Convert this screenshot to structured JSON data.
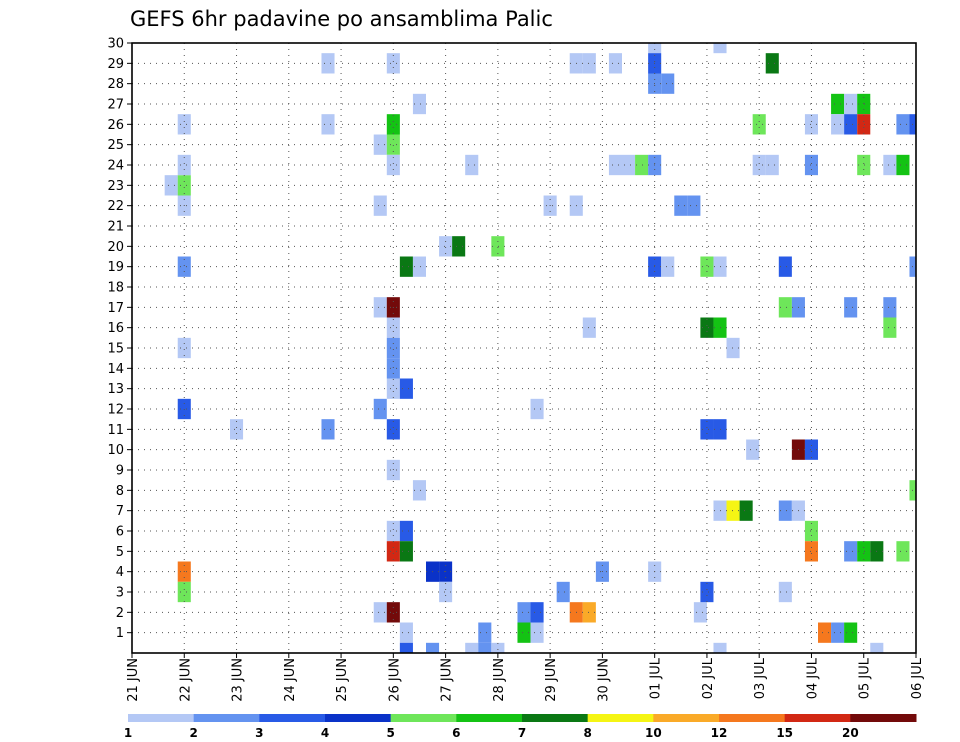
{
  "chart_data": {
    "type": "heatmap",
    "title": "GEFS 6hr padavine po ansamblima Palic",
    "xlabel": "",
    "ylabel": "",
    "x_ticks": [
      "21 JUN",
      "22 JUN",
      "23 JUN",
      "24 JUN",
      "25 JUN",
      "26 JUN",
      "27 JUN",
      "28 JUN",
      "29 JUN",
      "30 JUN",
      "01 JUL",
      "02 JUL",
      "03 JUL",
      "04 JUL",
      "05 JUL",
      "06 JUL"
    ],
    "y_ticks": [
      "1",
      "2",
      "3",
      "4",
      "5",
      "6",
      "7",
      "8",
      "9",
      "10",
      "11",
      "12",
      "13",
      "14",
      "15",
      "16",
      "17",
      "18",
      "19",
      "20",
      "21",
      "22",
      "23",
      "24",
      "25",
      "26",
      "27",
      "28",
      "29",
      "30"
    ],
    "xlim_days": [
      0,
      15
    ],
    "ylim": [
      0,
      30
    ],
    "grid": true,
    "colorbar": {
      "ticks": [
        "1",
        "2",
        "3",
        "4",
        "5",
        "6",
        "7",
        "8",
        "10",
        "12",
        "15",
        "20"
      ],
      "colors": [
        "#b4c8f5",
        "#6493f0",
        "#285ae6",
        "#0a32c8",
        "#6ee65a",
        "#14c314",
        "#0a7814",
        "#f5f514",
        "#faaa28",
        "#f5781e",
        "#d22814",
        "#730a0a"
      ]
    },
    "cells": [
      [
        0.75,
        23,
        0
      ],
      [
        1.0,
        23,
        4
      ],
      [
        1.0,
        22,
        0
      ],
      [
        1.0,
        24,
        0
      ],
      [
        1.0,
        26,
        0
      ],
      [
        1.0,
        19,
        1
      ],
      [
        1.0,
        15,
        0
      ],
      [
        1.0,
        12,
        2
      ],
      [
        1.0,
        4,
        9
      ],
      [
        1.0,
        3,
        4
      ],
      [
        2.0,
        11,
        0
      ],
      [
        3.75,
        29,
        0
      ],
      [
        3.75,
        26,
        0
      ],
      [
        3.75,
        11,
        1
      ],
      [
        4.75,
        25,
        0
      ],
      [
        4.75,
        22,
        0
      ],
      [
        4.75,
        17,
        0
      ],
      [
        4.75,
        12,
        1
      ],
      [
        4.75,
        2,
        0
      ],
      [
        5.0,
        29,
        0
      ],
      [
        5.0,
        26,
        5
      ],
      [
        5.0,
        25,
        4
      ],
      [
        5.0,
        24,
        0
      ],
      [
        5.0,
        17,
        11
      ],
      [
        5.0,
        16,
        0
      ],
      [
        5.0,
        15,
        1
      ],
      [
        5.0,
        14,
        1
      ],
      [
        5.0,
        13,
        0
      ],
      [
        5.0,
        11,
        2
      ],
      [
        5.0,
        9,
        0
      ],
      [
        5.0,
        6,
        0
      ],
      [
        5.0,
        5,
        10
      ],
      [
        5.0,
        2,
        11
      ],
      [
        5.25,
        19,
        6
      ],
      [
        5.25,
        13,
        2
      ],
      [
        5.25,
        6,
        2
      ],
      [
        5.25,
        5,
        6
      ],
      [
        5.25,
        1,
        0
      ],
      [
        5.25,
        0,
        2
      ],
      [
        5.5,
        27,
        0
      ],
      [
        5.5,
        19,
        0
      ],
      [
        5.5,
        8,
        0
      ],
      [
        5.75,
        4,
        3
      ],
      [
        5.75,
        0,
        1
      ],
      [
        6.0,
        20,
        0
      ],
      [
        6.0,
        4,
        3
      ],
      [
        6.0,
        3,
        0
      ],
      [
        6.25,
        20,
        6
      ],
      [
        6.5,
        24,
        0
      ],
      [
        6.5,
        0,
        0
      ],
      [
        6.75,
        1,
        1
      ],
      [
        6.75,
        0,
        1
      ],
      [
        7.0,
        20,
        4
      ],
      [
        7.0,
        0,
        0
      ],
      [
        7.5,
        2,
        1
      ],
      [
        7.5,
        1,
        5
      ],
      [
        7.75,
        2,
        2
      ],
      [
        7.75,
        1,
        0
      ],
      [
        7.75,
        12,
        0
      ],
      [
        8.0,
        22,
        0
      ],
      [
        8.25,
        3,
        1
      ],
      [
        8.5,
        29,
        0
      ],
      [
        8.5,
        22,
        0
      ],
      [
        8.5,
        2,
        9
      ],
      [
        8.75,
        29,
        0
      ],
      [
        8.75,
        16,
        0
      ],
      [
        8.75,
        2,
        8
      ],
      [
        9.0,
        4,
        1
      ],
      [
        9.25,
        29,
        0
      ],
      [
        9.25,
        24,
        0
      ],
      [
        9.5,
        24,
        0
      ],
      [
        9.75,
        24,
        4
      ],
      [
        10.0,
        30,
        0
      ],
      [
        10.0,
        29,
        2
      ],
      [
        10.0,
        28,
        1
      ],
      [
        10.0,
        24,
        1
      ],
      [
        10.0,
        19,
        2
      ],
      [
        10.0,
        4,
        0
      ],
      [
        10.25,
        28,
        1
      ],
      [
        10.25,
        19,
        0
      ],
      [
        10.5,
        22,
        1
      ],
      [
        10.75,
        22,
        1
      ],
      [
        10.875,
        2,
        0
      ],
      [
        11.0,
        19,
        4
      ],
      [
        11.0,
        16,
        6
      ],
      [
        11.0,
        11,
        2
      ],
      [
        11.0,
        3,
        2
      ],
      [
        11.25,
        30,
        0
      ],
      [
        11.25,
        19,
        0
      ],
      [
        11.25,
        16,
        5
      ],
      [
        11.25,
        11,
        2
      ],
      [
        11.25,
        7,
        0
      ],
      [
        11.25,
        0,
        0
      ],
      [
        11.5,
        15,
        0
      ],
      [
        11.5,
        7,
        7
      ],
      [
        11.75,
        7,
        6
      ],
      [
        11.875,
        10,
        0
      ],
      [
        12.0,
        26,
        4
      ],
      [
        12.0,
        24,
        0
      ],
      [
        12.25,
        24,
        0
      ],
      [
        12.25,
        29,
        6
      ],
      [
        12.5,
        19,
        2
      ],
      [
        12.5,
        17,
        4
      ],
      [
        12.5,
        7,
        1
      ],
      [
        12.5,
        3,
        0
      ],
      [
        12.75,
        17,
        1
      ],
      [
        12.75,
        10,
        11
      ],
      [
        12.75,
        7,
        0
      ],
      [
        13.0,
        26,
        0
      ],
      [
        13.0,
        24,
        1
      ],
      [
        13.0,
        10,
        2
      ],
      [
        13.0,
        6,
        4
      ],
      [
        13.0,
        5,
        9
      ],
      [
        13.25,
        1,
        9
      ],
      [
        13.5,
        27,
        5
      ],
      [
        13.5,
        26,
        0
      ],
      [
        13.5,
        1,
        1
      ],
      [
        13.75,
        27,
        0
      ],
      [
        13.75,
        26,
        2
      ],
      [
        13.75,
        17,
        1
      ],
      [
        13.75,
        5,
        1
      ],
      [
        13.75,
        1,
        5
      ],
      [
        14.0,
        27,
        5
      ],
      [
        14.0,
        26,
        10
      ],
      [
        14.0,
        24,
        4
      ],
      [
        14.0,
        5,
        5
      ],
      [
        14.25,
        5,
        6
      ],
      [
        14.25,
        0,
        0
      ],
      [
        14.5,
        24,
        0
      ],
      [
        14.5,
        17,
        1
      ],
      [
        14.5,
        16,
        4
      ],
      [
        14.75,
        26,
        1
      ],
      [
        14.75,
        24,
        5
      ],
      [
        14.75,
        5,
        4
      ],
      [
        15.0,
        26,
        2
      ],
      [
        15.0,
        19,
        1
      ],
      [
        15.0,
        8,
        4
      ]
    ]
  }
}
